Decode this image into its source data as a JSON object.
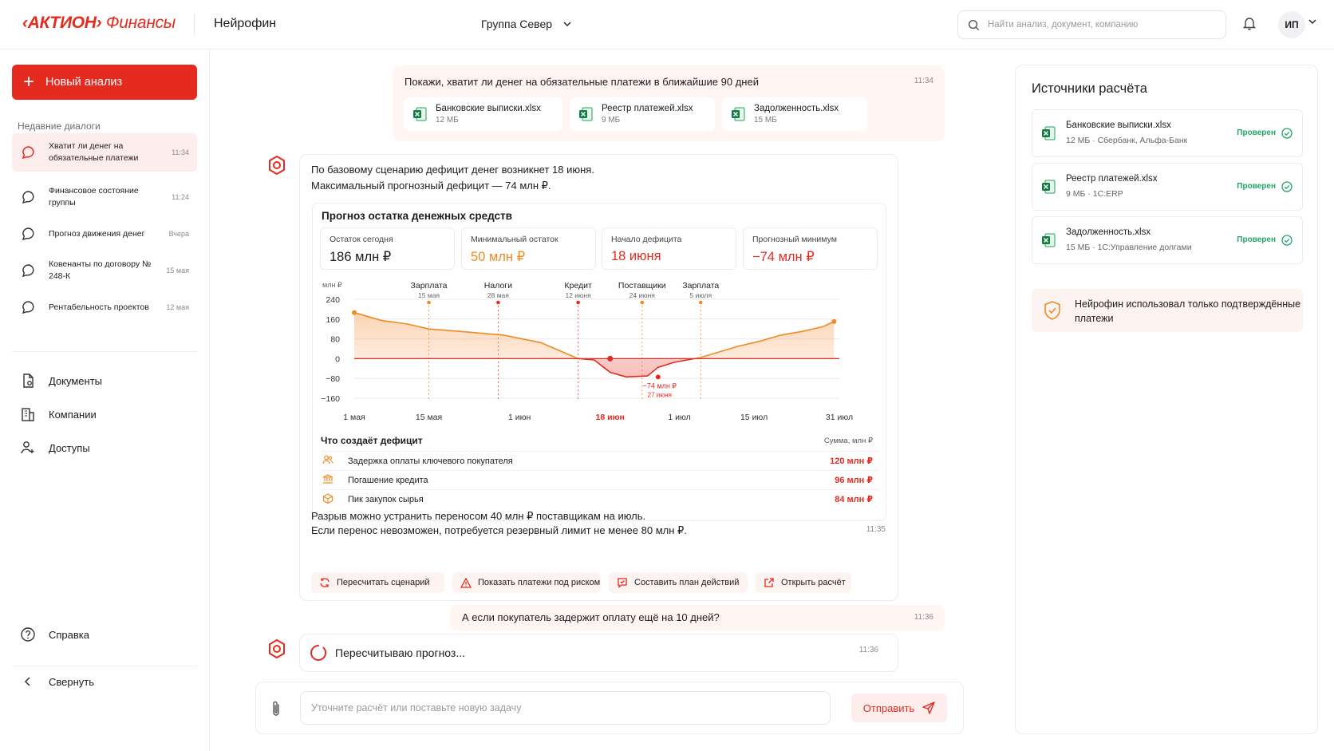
{
  "header": {
    "logo_brand": "‹АКТИОН›",
    "logo_product": "Финансы",
    "app_name": "Нейрофин",
    "group": "Группа Север",
    "search_placeholder": "Найти анализ, документ, компанию",
    "avatar": "ИП"
  },
  "sidebar": {
    "new_analysis": "Новый анализ",
    "recent_title": "Недавние диалоги",
    "recent": [
      {
        "title": "Хватит ли денег на обязательные платежи",
        "time": "11:34",
        "active": true
      },
      {
        "title": "Финансовое состояние группы",
        "time": "11:24"
      },
      {
        "title": "Прогноз движения денег",
        "time": "Вчера"
      },
      {
        "title": "Ковенанты по договору № 248-К",
        "time": "15 мая"
      },
      {
        "title": "Рентабельность проектов",
        "time": "12 мая"
      }
    ],
    "nav": {
      "documents": "Документы",
      "companies": "Компании",
      "access": "Доступы",
      "help": "Справка",
      "collapse": "Свернуть"
    }
  },
  "chat": {
    "user_message": "Покажи, хватит ли денег на обязательные платежи в ближайшие 90 дней",
    "user_time": "11:34",
    "files": [
      {
        "name": "Банковские выписки.xlsx",
        "size": "12 МБ"
      },
      {
        "name": "Реестр платежей.xlsx",
        "size": "9 МБ"
      },
      {
        "name": "Задолженность.xlsx",
        "size": "15 МБ"
      }
    ],
    "answer_line1": "По базовому сценарию дефицит денег возникнет 18 июня.",
    "answer_line2": "Максимальный прогнозный дефицит — 74 млн ₽.",
    "forecast_title": "Прогноз остатка денежных средств",
    "kpis": [
      {
        "label": "Остаток сегодня",
        "value": "186 млн ₽",
        "color": "#1c1c1e"
      },
      {
        "label": "Минимальный остаток",
        "value": "50 млн ₽",
        "color": "#f08a24"
      },
      {
        "label": "Начало дефицита",
        "value": "18 июня",
        "color": "#e52b1f"
      },
      {
        "label": "Прогнозный минимум",
        "value": "−74 млн ₽",
        "color": "#e52b1f"
      }
    ],
    "deficit_title": "Что создаёт дефицит",
    "deficit_unit": "Сумма, млн ₽",
    "deficit_rows": [
      {
        "label": "Задержка оплаты ключевого покупателя",
        "amount": "120 млн ₽",
        "icon": "users-icon"
      },
      {
        "label": "Погашение кредита",
        "amount": "96 млн ₽",
        "icon": "bank-icon"
      },
      {
        "label": "Пик закупок сырья",
        "amount": "84 млн ₽",
        "icon": "box-icon"
      }
    ],
    "answer_line3": "Разрыв можно устранить переносом 40 млн ₽ поставщикам на июль.",
    "answer_line4": "Если перенос невозможен, потребуется резервный лимит не менее 80 млн ₽.",
    "answer_time": "11:35",
    "actions": [
      "Пересчитать сценарий",
      "Показать платежи под риском",
      "Составить план действий",
      "Открыть расчёт"
    ],
    "user_message2": "А если покупатель задержит оплату ещё на 10 дней?",
    "user_time2": "11:36",
    "status_text": "Пересчитываю прогноз...",
    "status_time": "11:36",
    "composer_placeholder": "Уточните расчёт или поставьте новую задачу",
    "send_label": "Отправить"
  },
  "chart_data": {
    "type": "area",
    "ylabel": "млн ₽",
    "ylim": [
      -160,
      240
    ],
    "yticks": [
      "240",
      "160",
      "80",
      "0",
      "−80",
      "−160"
    ],
    "xticks": [
      "1 мая",
      "15 мая",
      "1 июн",
      "18 июн",
      "1 июл",
      "15 июл",
      "31 июл"
    ],
    "x_days": [
      0,
      5,
      10,
      14,
      20,
      28,
      35,
      42,
      45,
      48,
      51,
      55,
      57,
      60,
      65,
      72,
      76,
      80,
      84,
      88,
      90
    ],
    "y": [
      186,
      155,
      140,
      120,
      110,
      95,
      65,
      0,
      -5,
      -55,
      -74,
      -70,
      -35,
      -15,
      5,
      50,
      70,
      95,
      110,
      130,
      150
    ],
    "events": [
      {
        "name": "Зарплата",
        "date": "15 мая"
      },
      {
        "name": "Налоги",
        "date": "28 мая"
      },
      {
        "name": "Кредит",
        "date": "12 июня"
      },
      {
        "name": "Поставщики",
        "date": "24 июня"
      },
      {
        "name": "Зарплата",
        "date": "5 июля"
      }
    ],
    "min_label": "−74 млн ₽",
    "min_date": "27 июня",
    "deficit_start": "18 июн",
    "colors": {
      "positive": "#f5a05a",
      "negative": "#e52b1f"
    }
  },
  "sources": {
    "title": "Источники расчёта",
    "items": [
      {
        "name": "Банковские выписки.xlsx",
        "meta": "12 МБ · Сбербанк, Альфа-Банк",
        "status": "Проверен"
      },
      {
        "name": "Реестр платежей.xlsx",
        "meta": "9 МБ · 1С:ERP",
        "status": "Проверен"
      },
      {
        "name": "Задолженность.xlsx",
        "meta": "15 МБ · 1С:Управление долгами",
        "status": "Проверен"
      }
    ],
    "note": "Нейрофин использовал только подтверждённые платежи"
  }
}
